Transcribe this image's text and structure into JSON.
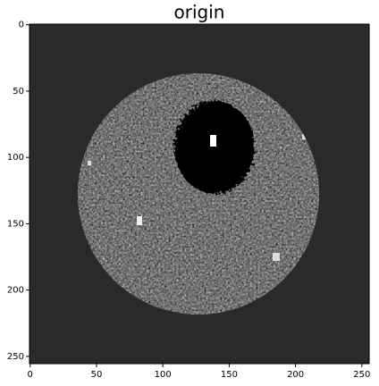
{
  "chart_data": {
    "type": "image",
    "title": "origin",
    "xlim": [
      -0.5,
      255.5
    ],
    "ylim": [
      255.5,
      -0.5
    ],
    "xticks": [
      0,
      50,
      100,
      150,
      200,
      250
    ],
    "yticks": [
      0,
      50,
      100,
      150,
      200,
      250
    ]
  }
}
